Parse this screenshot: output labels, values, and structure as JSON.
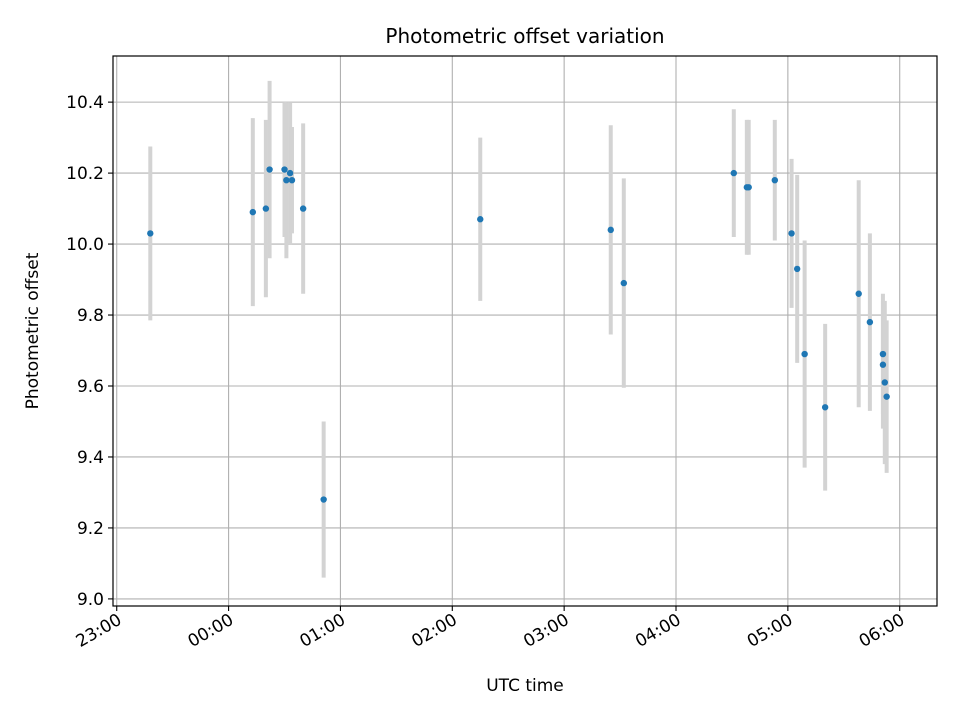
{
  "chart_data": {
    "type": "scatter",
    "title": "Photometric offset variation",
    "xlabel": "UTC time",
    "ylabel": "Photometric offset",
    "xlim": [
      "22:58",
      "06:20"
    ],
    "ylim": [
      8.98,
      10.53
    ],
    "x_ticks": [
      "23:00",
      "00:00",
      "01:00",
      "02:00",
      "03:00",
      "04:00",
      "05:00",
      "06:00"
    ],
    "y_ticks": [
      9.0,
      9.2,
      9.4,
      9.6,
      9.8,
      10.0,
      10.2,
      10.4
    ],
    "grid": true,
    "errorbar_color": "#d3d3d3",
    "point_color": "#1f77b4",
    "points": [
      {
        "x": "23:18",
        "y": 10.03,
        "err": 0.245
      },
      {
        "x": "00:13",
        "y": 10.09,
        "err": 0.265
      },
      {
        "x": "00:20",
        "y": 10.1,
        "err": 0.25
      },
      {
        "x": "00:22",
        "y": 10.21,
        "err": 0.25
      },
      {
        "x": "00:30",
        "y": 10.21,
        "err": 0.19
      },
      {
        "x": "00:31",
        "y": 10.18,
        "err": 0.22
      },
      {
        "x": "00:33",
        "y": 10.2,
        "err": 0.2
      },
      {
        "x": "00:34",
        "y": 10.18,
        "err": 0.15
      },
      {
        "x": "00:40",
        "y": 10.1,
        "err": 0.24
      },
      {
        "x": "00:51",
        "y": 9.28,
        "err": 0.22
      },
      {
        "x": "02:15",
        "y": 10.07,
        "err": 0.23
      },
      {
        "x": "03:25",
        "y": 10.04,
        "err": 0.295
      },
      {
        "x": "03:32",
        "y": 9.89,
        "err": 0.295
      },
      {
        "x": "04:31",
        "y": 10.2,
        "err": 0.18
      },
      {
        "x": "04:38",
        "y": 10.16,
        "err": 0.19
      },
      {
        "x": "04:39",
        "y": 10.16,
        "err": 0.19
      },
      {
        "x": "04:53",
        "y": 10.18,
        "err": 0.17
      },
      {
        "x": "05:02",
        "y": 10.03,
        "err": 0.21
      },
      {
        "x": "05:05",
        "y": 9.93,
        "err": 0.265
      },
      {
        "x": "05:09",
        "y": 9.69,
        "err": 0.32
      },
      {
        "x": "05:20",
        "y": 9.54,
        "err": 0.235
      },
      {
        "x": "05:38",
        "y": 9.86,
        "err": 0.32
      },
      {
        "x": "05:44",
        "y": 9.78,
        "err": 0.25
      },
      {
        "x": "05:51",
        "y": 9.69,
        "err": 0.17
      },
      {
        "x": "05:51",
        "y": 9.66,
        "err": 0.18
      },
      {
        "x": "05:52",
        "y": 9.61,
        "err": 0.23
      },
      {
        "x": "05:53",
        "y": 9.57,
        "err": 0.215
      }
    ]
  }
}
